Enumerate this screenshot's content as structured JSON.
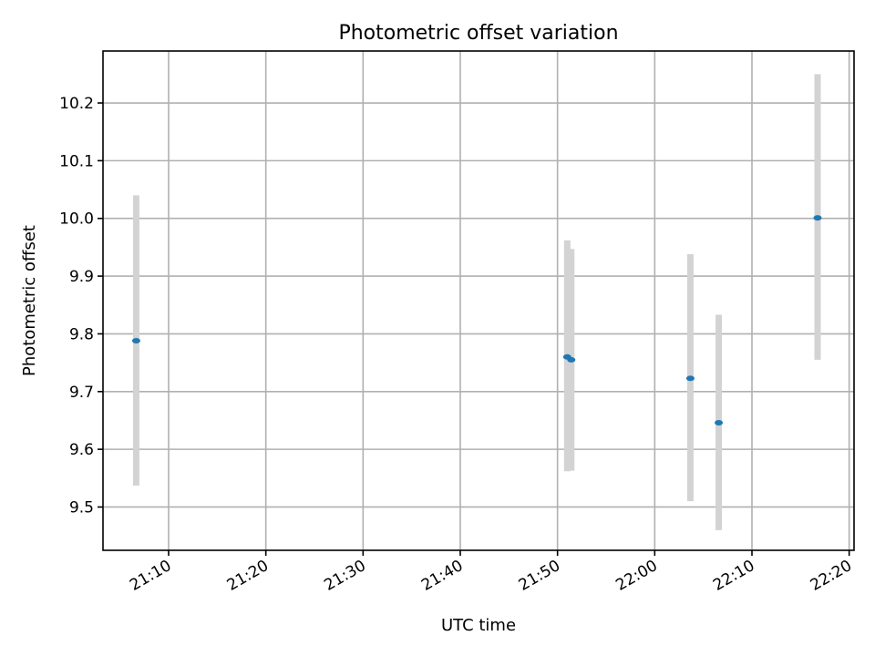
{
  "chart_data": {
    "type": "scatter",
    "title": "Photometric offset variation",
    "xlabel": "UTC time",
    "ylabel": "Photometric offset",
    "xlim": [
      "21:03:15",
      "22:20:30"
    ],
    "ylim": [
      9.425,
      10.29
    ],
    "x_ticks": [
      "21:10",
      "21:20",
      "21:30",
      "21:40",
      "21:50",
      "22:00",
      "22:10",
      "22:20"
    ],
    "y_ticks": [
      "9.5",
      "9.6",
      "9.7",
      "9.8",
      "9.9",
      "10.0",
      "10.1",
      "10.2"
    ],
    "grid": true,
    "points": [
      {
        "time": "21:06:40",
        "offset": 9.788,
        "err_low": 9.537,
        "err_high": 10.04
      },
      {
        "time": "21:51:00",
        "offset": 9.76,
        "err_low": 9.562,
        "err_high": 9.962
      },
      {
        "time": "21:51:25",
        "offset": 9.755,
        "err_low": 9.563,
        "err_high": 9.947
      },
      {
        "time": "22:03:40",
        "offset": 9.723,
        "err_low": 9.51,
        "err_high": 9.938
      },
      {
        "time": "22:06:35",
        "offset": 9.646,
        "err_low": 9.46,
        "err_high": 9.833
      },
      {
        "time": "22:16:45",
        "offset": 10.001,
        "err_low": 9.755,
        "err_high": 10.25
      }
    ],
    "colors": {
      "marker": "#1f77b4",
      "errorbar": "#d3d3d3",
      "grid": "#b0b0b0"
    }
  }
}
